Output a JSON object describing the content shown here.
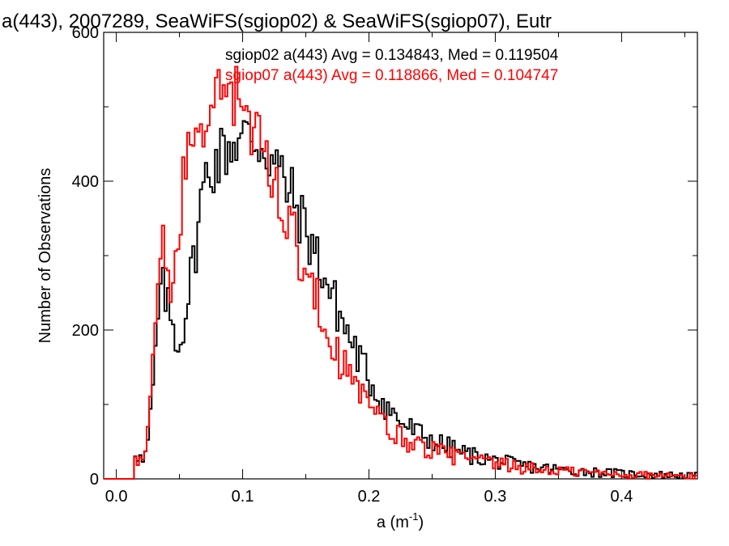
{
  "chart_data": {
    "type": "histogram",
    "title": "a(443), 2007289, SeaWiFS(sgiop02) & SeaWiFS(sgiop07), Eutr",
    "xlabel": "a (m",
    "xlabel_sup": "-1",
    "xlabel_close": ")",
    "ylabel": "Number of Observations",
    "xlim": [
      -0.01,
      0.46
    ],
    "ylim": [
      0,
      600
    ],
    "x_ticks": [
      0.0,
      0.1,
      0.2,
      0.3,
      0.4
    ],
    "x_tick_labels": [
      "0.0",
      "0.1",
      "0.2",
      "0.3",
      "0.4"
    ],
    "y_ticks": [
      0,
      200,
      400,
      600
    ],
    "y_tick_labels": [
      "0",
      "200",
      "400",
      "600"
    ],
    "bin_width": 0.002,
    "legend_position": "top-right",
    "series": [
      {
        "label": "sgiop02 a(443) Avg = 0.134843, Med = 0.119504",
        "color": "#000000",
        "curve": [
          [
            0.0,
            0
          ],
          [
            0.013,
            0
          ],
          [
            0.015,
            40
          ],
          [
            0.018,
            30
          ],
          [
            0.022,
            20
          ],
          [
            0.026,
            60
          ],
          [
            0.03,
            140
          ],
          [
            0.034,
            240
          ],
          [
            0.038,
            255
          ],
          [
            0.042,
            220
          ],
          [
            0.046,
            200
          ],
          [
            0.05,
            175
          ],
          [
            0.054,
            220
          ],
          [
            0.058,
            260
          ],
          [
            0.062,
            300
          ],
          [
            0.066,
            360
          ],
          [
            0.07,
            400
          ],
          [
            0.075,
            420
          ],
          [
            0.08,
            430
          ],
          [
            0.085,
            440
          ],
          [
            0.09,
            450
          ],
          [
            0.095,
            455
          ],
          [
            0.1,
            458
          ],
          [
            0.105,
            460
          ],
          [
            0.11,
            455
          ],
          [
            0.115,
            450
          ],
          [
            0.12,
            438
          ],
          [
            0.125,
            425
          ],
          [
            0.13,
            410
          ],
          [
            0.135,
            392
          ],
          [
            0.14,
            375
          ],
          [
            0.145,
            355
          ],
          [
            0.15,
            335
          ],
          [
            0.155,
            315
          ],
          [
            0.16,
            295
          ],
          [
            0.165,
            270
          ],
          [
            0.17,
            248
          ],
          [
            0.175,
            228
          ],
          [
            0.18,
            208
          ],
          [
            0.185,
            188
          ],
          [
            0.19,
            170
          ],
          [
            0.195,
            152
          ],
          [
            0.2,
            135
          ],
          [
            0.205,
            120
          ],
          [
            0.21,
            105
          ],
          [
            0.215,
            95
          ],
          [
            0.22,
            85
          ],
          [
            0.225,
            78
          ],
          [
            0.23,
            70
          ],
          [
            0.24,
            60
          ],
          [
            0.25,
            52
          ],
          [
            0.26,
            44
          ],
          [
            0.27,
            38
          ],
          [
            0.28,
            32
          ],
          [
            0.29,
            28
          ],
          [
            0.3,
            24
          ],
          [
            0.32,
            18
          ],
          [
            0.34,
            14
          ],
          [
            0.36,
            11
          ],
          [
            0.38,
            9
          ],
          [
            0.4,
            7
          ],
          [
            0.42,
            6
          ],
          [
            0.44,
            5
          ],
          [
            0.458,
            4
          ]
        ]
      },
      {
        "label": "sgiop07 a(443) Avg = 0.118866, Med = 0.104747",
        "color": "#ff0000",
        "curve": [
          [
            0.0,
            0
          ],
          [
            0.013,
            0
          ],
          [
            0.015,
            30
          ],
          [
            0.018,
            20
          ],
          [
            0.022,
            20
          ],
          [
            0.026,
            80
          ],
          [
            0.03,
            190
          ],
          [
            0.034,
            300
          ],
          [
            0.037,
            305
          ],
          [
            0.04,
            270
          ],
          [
            0.044,
            250
          ],
          [
            0.048,
            310
          ],
          [
            0.052,
            380
          ],
          [
            0.056,
            430
          ],
          [
            0.06,
            460
          ],
          [
            0.065,
            480
          ],
          [
            0.07,
            490
          ],
          [
            0.075,
            500
          ],
          [
            0.08,
            510
          ],
          [
            0.085,
            520
          ],
          [
            0.09,
            525
          ],
          [
            0.095,
            515
          ],
          [
            0.1,
            500
          ],
          [
            0.105,
            475
          ],
          [
            0.11,
            455
          ],
          [
            0.115,
            440
          ],
          [
            0.12,
            420
          ],
          [
            0.125,
            400
          ],
          [
            0.13,
            378
          ],
          [
            0.135,
            355
          ],
          [
            0.14,
            330
          ],
          [
            0.145,
            305
          ],
          [
            0.15,
            280
          ],
          [
            0.155,
            255
          ],
          [
            0.16,
            232
          ],
          [
            0.165,
            210
          ],
          [
            0.17,
            190
          ],
          [
            0.175,
            170
          ],
          [
            0.18,
            152
          ],
          [
            0.185,
            136
          ],
          [
            0.19,
            122
          ],
          [
            0.195,
            108
          ],
          [
            0.2,
            96
          ],
          [
            0.205,
            86
          ],
          [
            0.21,
            76
          ],
          [
            0.215,
            68
          ],
          [
            0.22,
            60
          ],
          [
            0.23,
            52
          ],
          [
            0.24,
            45
          ],
          [
            0.25,
            39
          ],
          [
            0.26,
            34
          ],
          [
            0.27,
            30
          ],
          [
            0.28,
            26
          ],
          [
            0.29,
            22
          ],
          [
            0.3,
            20
          ],
          [
            0.32,
            15
          ],
          [
            0.34,
            12
          ],
          [
            0.36,
            10
          ],
          [
            0.38,
            8
          ],
          [
            0.4,
            6
          ],
          [
            0.42,
            5
          ],
          [
            0.44,
            4
          ],
          [
            0.458,
            3
          ]
        ]
      }
    ]
  }
}
